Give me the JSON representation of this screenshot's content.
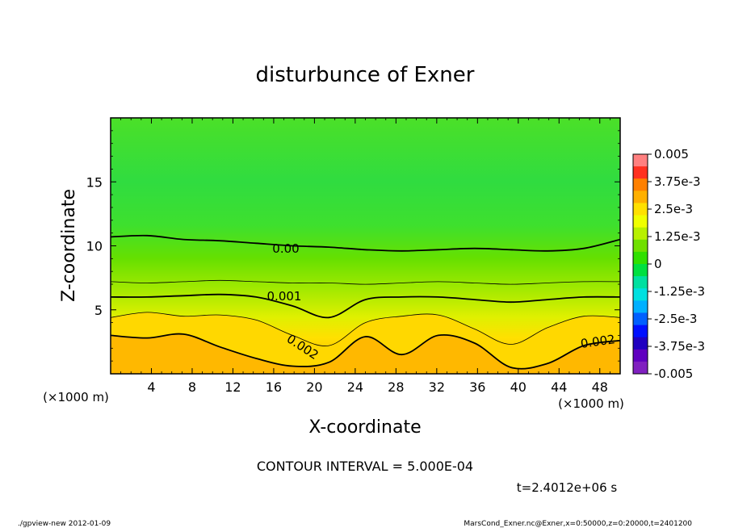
{
  "chart_data": {
    "type": "heatmap",
    "title": "disturbunce of Exner",
    "xlabel": "X-coordinate",
    "ylabel": "Z-coordinate",
    "x_unit": "(×1000 m)",
    "y_unit": "(×1000 m)",
    "xlim": [
      0,
      50
    ],
    "ylim": [
      0,
      20
    ],
    "x_ticks": [
      4,
      8,
      12,
      16,
      20,
      24,
      28,
      32,
      36,
      40,
      44,
      48
    ],
    "y_ticks": [
      5,
      10,
      15
    ],
    "contour_interval_label": "CONTOUR INTERVAL = 5.000E-04",
    "time_label": "t=2.4012e+06 s",
    "colorbar": {
      "ticks": [
        "0.005",
        "3.75e-3",
        "2.5e-3",
        "1.25e-3",
        "0",
        "-1.25e-3",
        "-2.5e-3",
        "-3.75e-3",
        "-0.005"
      ],
      "range": [
        -0.005,
        0.005
      ],
      "colors": [
        "#ff8080",
        "#ff3020",
        "#ff8000",
        "#ffb000",
        "#ffe000",
        "#f0ff00",
        "#b8f000",
        "#70e000",
        "#30e000",
        "#00e040",
        "#00e0a0",
        "#00e0e0",
        "#00b0ff",
        "#0060ff",
        "#0010ff",
        "#2000c0",
        "#6000c0",
        "#8020c0"
      ]
    },
    "contour_labels": [
      "0.00",
      "0.001",
      "0.002",
      "0.002"
    ],
    "contours": [
      {
        "level": 0.0,
        "z": [
          10.7,
          10.8,
          10.5,
          10.4,
          10.2,
          10.0,
          9.9,
          9.7,
          9.6,
          9.7,
          9.8,
          9.7,
          9.6,
          9.8,
          10.5
        ]
      },
      {
        "level": 0.0005,
        "z": [
          7.2,
          7.1,
          7.2,
          7.3,
          7.2,
          7.1,
          7.1,
          7.0,
          7.1,
          7.2,
          7.1,
          7.0,
          7.1,
          7.2,
          7.2
        ]
      },
      {
        "level": 0.001,
        "z": [
          6.0,
          6.0,
          6.1,
          6.2,
          6.0,
          5.3,
          4.4,
          5.8,
          6.0,
          6.0,
          5.8,
          5.6,
          5.8,
          6.0,
          6.0
        ]
      },
      {
        "level": 0.0015,
        "z": [
          4.4,
          4.8,
          4.5,
          4.6,
          4.2,
          3.0,
          2.2,
          4.0,
          4.5,
          4.6,
          3.5,
          2.3,
          3.6,
          4.5,
          4.4
        ]
      },
      {
        "level": 0.002,
        "z": [
          3.0,
          2.8,
          3.1,
          2.1,
          1.2,
          0.6,
          0.9,
          2.9,
          1.5,
          3.0,
          2.4,
          0.5,
          0.8,
          2.2,
          2.6
        ]
      }
    ]
  },
  "footer": {
    "left": "./gpview-new   2012-01-09",
    "right": "MarsCond_Exner.nc@Exner,x=0:50000,z=0:20000,t=2401200"
  }
}
